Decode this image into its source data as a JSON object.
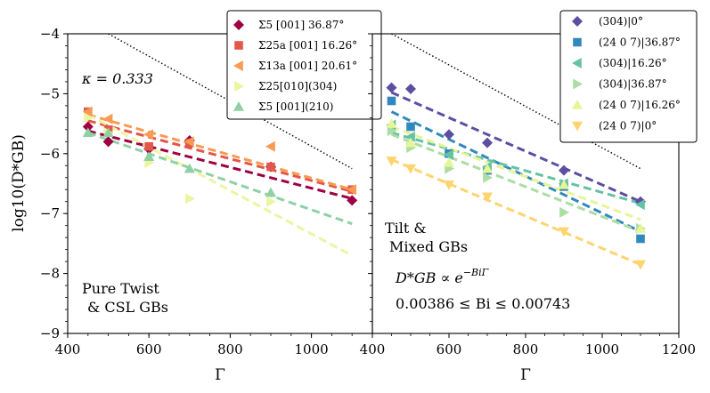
{
  "colors": {
    "sigma5_001": "#9e0142",
    "sigma25a_001": "#e25749",
    "sigma13a_001": "#fa9a53",
    "sigma25_010": "#ecf5a0",
    "sigma5_210": "#8fd1a4",
    "t304_0": "#5d4ea2",
    "t2407_3687": "#3288bd",
    "t304_1626": "#66c2a5",
    "t304_3687": "#abdda4",
    "t2407_1626": "#e6f598",
    "t2407_0": "#fdd46e"
  },
  "icons": {
    "diamond": "diamond-marker",
    "square": "square-marker",
    "tri_left": "triangle-left-marker",
    "tri_right": "triangle-right-marker",
    "tri_up": "triangle-up-marker",
    "tri_down": "triangle-down-marker"
  },
  "chart_data": [
    {
      "type": "scatter",
      "name": "left-panel",
      "xlabel": "Γ",
      "ylabel": "log10(D*GB)",
      "xlim": [
        400,
        1150
      ],
      "ylim": [
        -9,
        -4
      ],
      "xticks": [
        400,
        600,
        800,
        1000
      ],
      "xtick_labels": [
        "400",
        "600",
        "800",
        "1000"
      ],
      "yticks": [
        -4,
        -5,
        -6,
        -7,
        -8,
        -9
      ],
      "ytick_labels": [
        "−4",
        "−5",
        "−6",
        "−7",
        "−8",
        "−9"
      ],
      "annotations": {
        "kappa_label": "κ = 0.333",
        "group_label_1": "Pure Twist",
        "group_label_2": "& CSL GBs"
      },
      "reference_line": {
        "x": [
          500,
          1100
        ],
        "y": [
          -4.0,
          -6.25
        ]
      },
      "legend_position": "top",
      "series": [
        {
          "name": "Σ5 [001] 36.87°",
          "marker": "diamond",
          "color_key": "sigma5_001",
          "x": [
            450,
            500,
            600,
            700,
            900,
            1100
          ],
          "y": [
            -5.55,
            -5.8,
            -5.92,
            -5.78,
            -6.22,
            -6.78
          ],
          "fit": {
            "x": [
              450,
              1100
            ],
            "y": [
              -5.62,
              -6.75
            ]
          }
        },
        {
          "name": "Σ25a [001] 16.26°",
          "marker": "square",
          "color_key": "sigma25a_001",
          "x": [
            450,
            500,
            600,
            700,
            900,
            1100
          ],
          "y": [
            -5.3,
            -5.6,
            -5.88,
            -5.82,
            -6.22,
            -6.6
          ],
          "fit": {
            "x": [
              450,
              1100
            ],
            "y": [
              -5.45,
              -6.63
            ]
          }
        },
        {
          "name": "Σ13a [001] 20.61°",
          "marker": "tri_left",
          "color_key": "sigma13a_001",
          "x": [
            450,
            500,
            600,
            700,
            900,
            1100
          ],
          "y": [
            -5.3,
            -5.42,
            -5.68,
            -5.8,
            -5.88,
            -6.6
          ],
          "fit": {
            "x": [
              450,
              1100
            ],
            "y": [
              -5.35,
              -6.6
            ]
          }
        },
        {
          "name": "Σ25[010](304)",
          "marker": "tri_right",
          "color_key": "sigma25_010",
          "x": [
            450,
            500,
            600,
            700,
            900
          ],
          "y": [
            -5.4,
            -5.65,
            -6.15,
            -6.75,
            -6.8
          ],
          "fit": {
            "x": [
              450,
              1100
            ],
            "y": [
              -5.35,
              -7.7
            ]
          }
        },
        {
          "name": "Σ5 [001](210)",
          "marker": "tri_up",
          "color_key": "sigma5_210",
          "x": [
            450,
            500,
            600,
            700,
            900
          ],
          "y": [
            -5.65,
            -5.65,
            -6.05,
            -6.25,
            -6.65
          ],
          "fit": {
            "x": [
              450,
              1100
            ],
            "y": [
              -5.65,
              -7.17
            ]
          }
        }
      ]
    },
    {
      "type": "scatter",
      "name": "right-panel",
      "xlabel": "Γ",
      "xlim": [
        400,
        1200
      ],
      "ylim": [
        -9,
        -4
      ],
      "xticks": [
        400,
        600,
        800,
        1000,
        1200
      ],
      "xtick_labels": [
        "400",
        "600",
        "800",
        "1000",
        "1200"
      ],
      "annotations": {
        "group_label_1": "Tilt &",
        "group_label_2": "Mixed GBs",
        "formula_lhs": "D*GB ∝ e",
        "formula_exp": "−BiΓ",
        "range_label": "0.00386 ≤ Bi ≤ 0.00743"
      },
      "reference_line": {
        "x": [
          450,
          1100
        ],
        "y": [
          -4.0,
          -6.25
        ]
      },
      "legend_position": "top-right",
      "series": [
        {
          "name": "(304)|0°",
          "marker": "diamond",
          "color_key": "t304_0",
          "x": [
            450,
            500,
            600,
            700,
            900,
            1100
          ],
          "y": [
            -4.9,
            -4.92,
            -5.68,
            -5.82,
            -6.28,
            -6.8
          ],
          "fit": {
            "x": [
              450,
              1100
            ],
            "y": [
              -4.98,
              -6.8
            ]
          }
        },
        {
          "name": "(24 0 7)|36.87°",
          "marker": "square",
          "color_key": "t2407_3687",
          "x": [
            450,
            500,
            600,
            700,
            900,
            1100
          ],
          "y": [
            -5.12,
            -5.55,
            -6.0,
            -6.28,
            -6.55,
            -7.42
          ],
          "fit": {
            "x": [
              450,
              1100
            ],
            "y": [
              -5.3,
              -7.3
            ]
          }
        },
        {
          "name": "(304)|16.26°",
          "marker": "tri_left",
          "color_key": "t304_1626",
          "x": [
            450,
            500,
            600,
            700,
            900,
            1100
          ],
          "y": [
            -5.52,
            -5.72,
            -6.02,
            -6.22,
            -6.5,
            -6.85
          ],
          "fit": {
            "x": [
              450,
              1100
            ],
            "y": [
              -5.65,
              -6.83
            ]
          }
        },
        {
          "name": "(304)|36.87°",
          "marker": "tri_right",
          "color_key": "t304_3687",
          "x": [
            450,
            500,
            600,
            700,
            900,
            1100
          ],
          "y": [
            -5.62,
            -5.9,
            -6.25,
            -6.4,
            -6.98,
            -7.25
          ],
          "fit": {
            "x": [
              450,
              1100
            ],
            "y": [
              -5.68,
              -7.3
            ]
          }
        },
        {
          "name": "(24 0 7)|16.26°",
          "marker": "tri_up",
          "color_key": "t2407_1626",
          "x": [
            450,
            500,
            600,
            700,
            900,
            1100
          ],
          "y": [
            -5.5,
            -5.82,
            -6.15,
            -6.25,
            -6.52,
            -7.25
          ],
          "fit": {
            "x": [
              450,
              1100
            ],
            "y": [
              -5.55,
              -7.1
            ]
          }
        },
        {
          "name": "(24 0 7)|0°",
          "marker": "tri_down",
          "color_key": "t2407_0",
          "x": [
            450,
            500,
            600,
            700,
            900,
            1100
          ],
          "y": [
            -6.12,
            -6.25,
            -6.52,
            -6.72,
            -7.3,
            -7.85
          ],
          "fit": {
            "x": [
              450,
              1100
            ],
            "y": [
              -6.1,
              -7.85
            ]
          }
        }
      ]
    }
  ]
}
